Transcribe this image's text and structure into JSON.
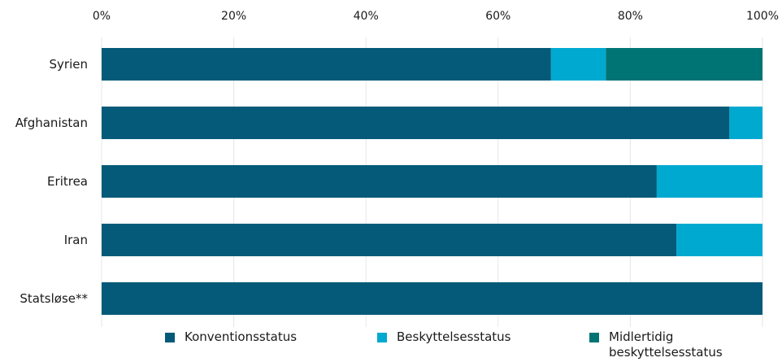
{
  "chart_data": {
    "type": "bar",
    "orientation": "horizontal",
    "stacked": true,
    "categories": [
      "Syrien",
      "Afghanistan",
      "Eritrea",
      "Iran",
      "Statsløse**"
    ],
    "series": [
      {
        "name": "Konventionsstatus",
        "color": "#045a78",
        "values": [
          68,
          95,
          84,
          87,
          100
        ]
      },
      {
        "name": "Beskyttelsesstatus",
        "color": "#00a9d0",
        "values": [
          8.3,
          5,
          16,
          13,
          0
        ]
      },
      {
        "name": "Midlertidig beskyttelsesstatus",
        "color": "#007474",
        "values": [
          23.7,
          0,
          0,
          0,
          0
        ]
      }
    ],
    "x_ticks": [
      "0%",
      "20%",
      "40%",
      "60%",
      "80%",
      "100%"
    ],
    "xlim": [
      0,
      100
    ],
    "axis_position": "top",
    "grid": true,
    "legend_position": "bottom"
  }
}
